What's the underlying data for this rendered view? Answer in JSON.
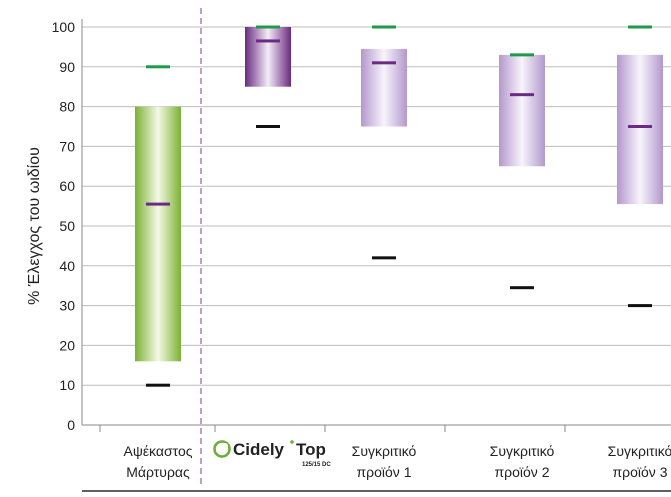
{
  "chart_data": {
    "type": "floating-bar-range",
    "ylabel": "% Έλεγχος του ωιδίου",
    "ylim": [
      0,
      100
    ],
    "yticks": [
      "0",
      "10",
      "20",
      "30",
      "40",
      "50",
      "60",
      "70",
      "80",
      "90",
      "100"
    ],
    "categories": [
      {
        "lines": [
          "Αψέκαστος",
          "Μάρτυρας"
        ],
        "low": 16,
        "high": 80,
        "max_mark": 90,
        "mean_mark": 55.5,
        "min_mark": 10,
        "color": "#8fc043"
      },
      {
        "logo": {
          "brand": "Cidely",
          "suffix": "Top",
          "sub": "125/15 DC"
        },
        "low": 85,
        "high": 100,
        "max_mark": 100,
        "mean_mark": 96.5,
        "min_mark": 75,
        "color": "#8a3f9c"
      },
      {
        "lines": [
          "Συγκριτικό",
          "προϊόν 1"
        ],
        "low": 75,
        "high": 94.5,
        "max_mark": 100,
        "mean_mark": 91,
        "min_mark": 42,
        "color": "#b89ed0"
      },
      {
        "lines": [
          "Συγκριτικό",
          "προϊόν 2"
        ],
        "low": 65,
        "high": 93,
        "max_mark": 93,
        "mean_mark": 83,
        "min_mark": 34.5,
        "color": "#b89ed0"
      },
      {
        "lines": [
          "Συγκριτικό",
          "προϊόν 3"
        ],
        "low": 55.5,
        "high": 93,
        "max_mark": 100,
        "mean_mark": 75,
        "min_mark": 30,
        "color": "#b89ed0"
      }
    ],
    "marker_colors": {
      "max": "#1f9a4a",
      "mean": "#6b2a84",
      "min": "#111111"
    },
    "grid": true,
    "dashed_separator_after_category": 1
  }
}
